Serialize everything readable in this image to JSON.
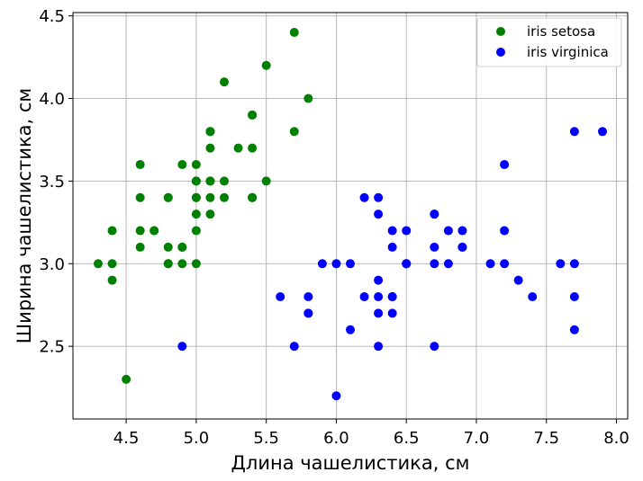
{
  "chart_data": {
    "type": "scatter",
    "title": "",
    "xlabel": "Длина чашелистика, см",
    "ylabel": "Ширина чашелистика, см",
    "xlim": [
      4.12,
      8.08
    ],
    "ylim": [
      2.06,
      4.52
    ],
    "xticks": [
      4.5,
      5.0,
      5.5,
      6.0,
      6.5,
      7.0,
      7.5,
      8.0
    ],
    "xtick_labels": [
      "4.5",
      "5.0",
      "5.5",
      "6.0",
      "6.5",
      "7.0",
      "7.5",
      "8.0"
    ],
    "yticks": [
      2.5,
      3.0,
      3.5,
      4.0,
      4.5
    ],
    "ytick_labels": [
      "2.5",
      "3.0",
      "3.5",
      "4.0",
      "4.5"
    ],
    "grid": true,
    "legend_position": "top-right",
    "series": [
      {
        "name": "iris setosa",
        "color": "#008000",
        "points": [
          [
            5.1,
            3.5
          ],
          [
            4.9,
            3.0
          ],
          [
            4.7,
            3.2
          ],
          [
            4.6,
            3.1
          ],
          [
            5.0,
            3.6
          ],
          [
            5.4,
            3.9
          ],
          [
            4.6,
            3.4
          ],
          [
            5.0,
            3.4
          ],
          [
            4.4,
            2.9
          ],
          [
            4.9,
            3.1
          ],
          [
            5.4,
            3.7
          ],
          [
            4.8,
            3.4
          ],
          [
            4.8,
            3.0
          ],
          [
            4.3,
            3.0
          ],
          [
            5.8,
            4.0
          ],
          [
            5.7,
            4.4
          ],
          [
            5.4,
            3.9
          ],
          [
            5.1,
            3.5
          ],
          [
            5.7,
            3.8
          ],
          [
            5.1,
            3.8
          ],
          [
            5.4,
            3.4
          ],
          [
            5.1,
            3.7
          ],
          [
            4.6,
            3.6
          ],
          [
            5.1,
            3.3
          ],
          [
            4.8,
            3.4
          ],
          [
            5.0,
            3.0
          ],
          [
            5.0,
            3.4
          ],
          [
            5.2,
            3.5
          ],
          [
            5.2,
            3.4
          ],
          [
            4.7,
            3.2
          ],
          [
            4.8,
            3.1
          ],
          [
            5.4,
            3.4
          ],
          [
            5.2,
            4.1
          ],
          [
            5.5,
            4.2
          ],
          [
            4.9,
            3.1
          ],
          [
            5.0,
            3.2
          ],
          [
            5.5,
            3.5
          ],
          [
            4.9,
            3.6
          ],
          [
            4.4,
            3.0
          ],
          [
            5.1,
            3.4
          ],
          [
            5.0,
            3.5
          ],
          [
            4.5,
            2.3
          ],
          [
            4.4,
            3.2
          ],
          [
            5.0,
            3.5
          ],
          [
            5.1,
            3.8
          ],
          [
            4.8,
            3.0
          ],
          [
            5.1,
            3.8
          ],
          [
            4.6,
            3.2
          ],
          [
            5.3,
            3.7
          ],
          [
            5.0,
            3.3
          ]
        ]
      },
      {
        "name": "iris virginica",
        "color": "#0000ff",
        "points": [
          [
            6.3,
            3.3
          ],
          [
            5.8,
            2.7
          ],
          [
            7.1,
            3.0
          ],
          [
            6.3,
            2.9
          ],
          [
            6.5,
            3.0
          ],
          [
            7.6,
            3.0
          ],
          [
            4.9,
            2.5
          ],
          [
            7.3,
            2.9
          ],
          [
            6.7,
            2.5
          ],
          [
            7.2,
            3.6
          ],
          [
            6.5,
            3.2
          ],
          [
            6.4,
            2.7
          ],
          [
            6.8,
            3.0
          ],
          [
            5.7,
            2.5
          ],
          [
            5.8,
            2.8
          ],
          [
            6.4,
            3.2
          ],
          [
            6.5,
            3.0
          ],
          [
            7.7,
            3.8
          ],
          [
            7.7,
            2.6
          ],
          [
            6.0,
            2.2
          ],
          [
            6.9,
            3.2
          ],
          [
            5.6,
            2.8
          ],
          [
            7.7,
            2.8
          ],
          [
            6.3,
            2.7
          ],
          [
            6.7,
            3.3
          ],
          [
            7.2,
            3.2
          ],
          [
            6.2,
            2.8
          ],
          [
            6.1,
            3.0
          ],
          [
            6.4,
            2.8
          ],
          [
            7.2,
            3.0
          ],
          [
            7.4,
            2.8
          ],
          [
            7.9,
            3.8
          ],
          [
            6.4,
            2.8
          ],
          [
            6.3,
            2.8
          ],
          [
            6.1,
            2.6
          ],
          [
            7.7,
            3.0
          ],
          [
            6.3,
            3.4
          ],
          [
            6.4,
            3.1
          ],
          [
            6.0,
            3.0
          ],
          [
            6.9,
            3.1
          ],
          [
            6.7,
            3.1
          ],
          [
            6.9,
            3.1
          ],
          [
            5.8,
            2.7
          ],
          [
            6.8,
            3.2
          ],
          [
            6.7,
            3.3
          ],
          [
            6.7,
            3.0
          ],
          [
            6.3,
            2.5
          ],
          [
            6.5,
            3.0
          ],
          [
            6.2,
            3.4
          ],
          [
            5.9,
            3.0
          ]
        ]
      }
    ]
  }
}
